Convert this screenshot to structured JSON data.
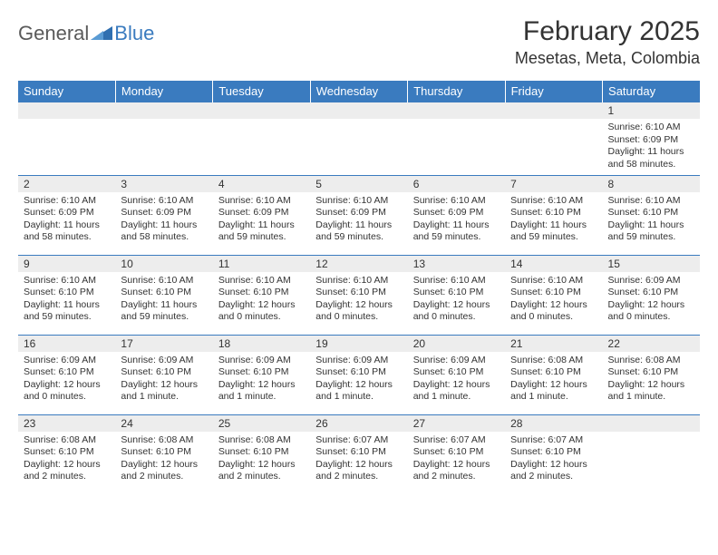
{
  "logo": {
    "general": "General",
    "blue": "Blue"
  },
  "title": "February 2025",
  "location": "Mesetas, Meta, Colombia",
  "colors": {
    "header_bg": "#3a7bbf",
    "header_text": "#ffffff",
    "daynum_bg": "#ededed",
    "body_text": "#333333",
    "logo_gray": "#5a5a5a",
    "logo_blue": "#3a7bbf",
    "page_bg": "#ffffff",
    "rule": "#3a7bbf"
  },
  "day_headers": [
    "Sunday",
    "Monday",
    "Tuesday",
    "Wednesday",
    "Thursday",
    "Friday",
    "Saturday"
  ],
  "weeks": [
    [
      null,
      null,
      null,
      null,
      null,
      null,
      {
        "n": "1",
        "sr": "Sunrise: 6:10 AM",
        "ss": "Sunset: 6:09 PM",
        "dl": "Daylight: 11 hours and 58 minutes."
      }
    ],
    [
      {
        "n": "2",
        "sr": "Sunrise: 6:10 AM",
        "ss": "Sunset: 6:09 PM",
        "dl": "Daylight: 11 hours and 58 minutes."
      },
      {
        "n": "3",
        "sr": "Sunrise: 6:10 AM",
        "ss": "Sunset: 6:09 PM",
        "dl": "Daylight: 11 hours and 58 minutes."
      },
      {
        "n": "4",
        "sr": "Sunrise: 6:10 AM",
        "ss": "Sunset: 6:09 PM",
        "dl": "Daylight: 11 hours and 59 minutes."
      },
      {
        "n": "5",
        "sr": "Sunrise: 6:10 AM",
        "ss": "Sunset: 6:09 PM",
        "dl": "Daylight: 11 hours and 59 minutes."
      },
      {
        "n": "6",
        "sr": "Sunrise: 6:10 AM",
        "ss": "Sunset: 6:09 PM",
        "dl": "Daylight: 11 hours and 59 minutes."
      },
      {
        "n": "7",
        "sr": "Sunrise: 6:10 AM",
        "ss": "Sunset: 6:10 PM",
        "dl": "Daylight: 11 hours and 59 minutes."
      },
      {
        "n": "8",
        "sr": "Sunrise: 6:10 AM",
        "ss": "Sunset: 6:10 PM",
        "dl": "Daylight: 11 hours and 59 minutes."
      }
    ],
    [
      {
        "n": "9",
        "sr": "Sunrise: 6:10 AM",
        "ss": "Sunset: 6:10 PM",
        "dl": "Daylight: 11 hours and 59 minutes."
      },
      {
        "n": "10",
        "sr": "Sunrise: 6:10 AM",
        "ss": "Sunset: 6:10 PM",
        "dl": "Daylight: 11 hours and 59 minutes."
      },
      {
        "n": "11",
        "sr": "Sunrise: 6:10 AM",
        "ss": "Sunset: 6:10 PM",
        "dl": "Daylight: 12 hours and 0 minutes."
      },
      {
        "n": "12",
        "sr": "Sunrise: 6:10 AM",
        "ss": "Sunset: 6:10 PM",
        "dl": "Daylight: 12 hours and 0 minutes."
      },
      {
        "n": "13",
        "sr": "Sunrise: 6:10 AM",
        "ss": "Sunset: 6:10 PM",
        "dl": "Daylight: 12 hours and 0 minutes."
      },
      {
        "n": "14",
        "sr": "Sunrise: 6:10 AM",
        "ss": "Sunset: 6:10 PM",
        "dl": "Daylight: 12 hours and 0 minutes."
      },
      {
        "n": "15",
        "sr": "Sunrise: 6:09 AM",
        "ss": "Sunset: 6:10 PM",
        "dl": "Daylight: 12 hours and 0 minutes."
      }
    ],
    [
      {
        "n": "16",
        "sr": "Sunrise: 6:09 AM",
        "ss": "Sunset: 6:10 PM",
        "dl": "Daylight: 12 hours and 0 minutes."
      },
      {
        "n": "17",
        "sr": "Sunrise: 6:09 AM",
        "ss": "Sunset: 6:10 PM",
        "dl": "Daylight: 12 hours and 1 minute."
      },
      {
        "n": "18",
        "sr": "Sunrise: 6:09 AM",
        "ss": "Sunset: 6:10 PM",
        "dl": "Daylight: 12 hours and 1 minute."
      },
      {
        "n": "19",
        "sr": "Sunrise: 6:09 AM",
        "ss": "Sunset: 6:10 PM",
        "dl": "Daylight: 12 hours and 1 minute."
      },
      {
        "n": "20",
        "sr": "Sunrise: 6:09 AM",
        "ss": "Sunset: 6:10 PM",
        "dl": "Daylight: 12 hours and 1 minute."
      },
      {
        "n": "21",
        "sr": "Sunrise: 6:08 AM",
        "ss": "Sunset: 6:10 PM",
        "dl": "Daylight: 12 hours and 1 minute."
      },
      {
        "n": "22",
        "sr": "Sunrise: 6:08 AM",
        "ss": "Sunset: 6:10 PM",
        "dl": "Daylight: 12 hours and 1 minute."
      }
    ],
    [
      {
        "n": "23",
        "sr": "Sunrise: 6:08 AM",
        "ss": "Sunset: 6:10 PM",
        "dl": "Daylight: 12 hours and 2 minutes."
      },
      {
        "n": "24",
        "sr": "Sunrise: 6:08 AM",
        "ss": "Sunset: 6:10 PM",
        "dl": "Daylight: 12 hours and 2 minutes."
      },
      {
        "n": "25",
        "sr": "Sunrise: 6:08 AM",
        "ss": "Sunset: 6:10 PM",
        "dl": "Daylight: 12 hours and 2 minutes."
      },
      {
        "n": "26",
        "sr": "Sunrise: 6:07 AM",
        "ss": "Sunset: 6:10 PM",
        "dl": "Daylight: 12 hours and 2 minutes."
      },
      {
        "n": "27",
        "sr": "Sunrise: 6:07 AM",
        "ss": "Sunset: 6:10 PM",
        "dl": "Daylight: 12 hours and 2 minutes."
      },
      {
        "n": "28",
        "sr": "Sunrise: 6:07 AM",
        "ss": "Sunset: 6:10 PM",
        "dl": "Daylight: 12 hours and 2 minutes."
      },
      null
    ]
  ]
}
